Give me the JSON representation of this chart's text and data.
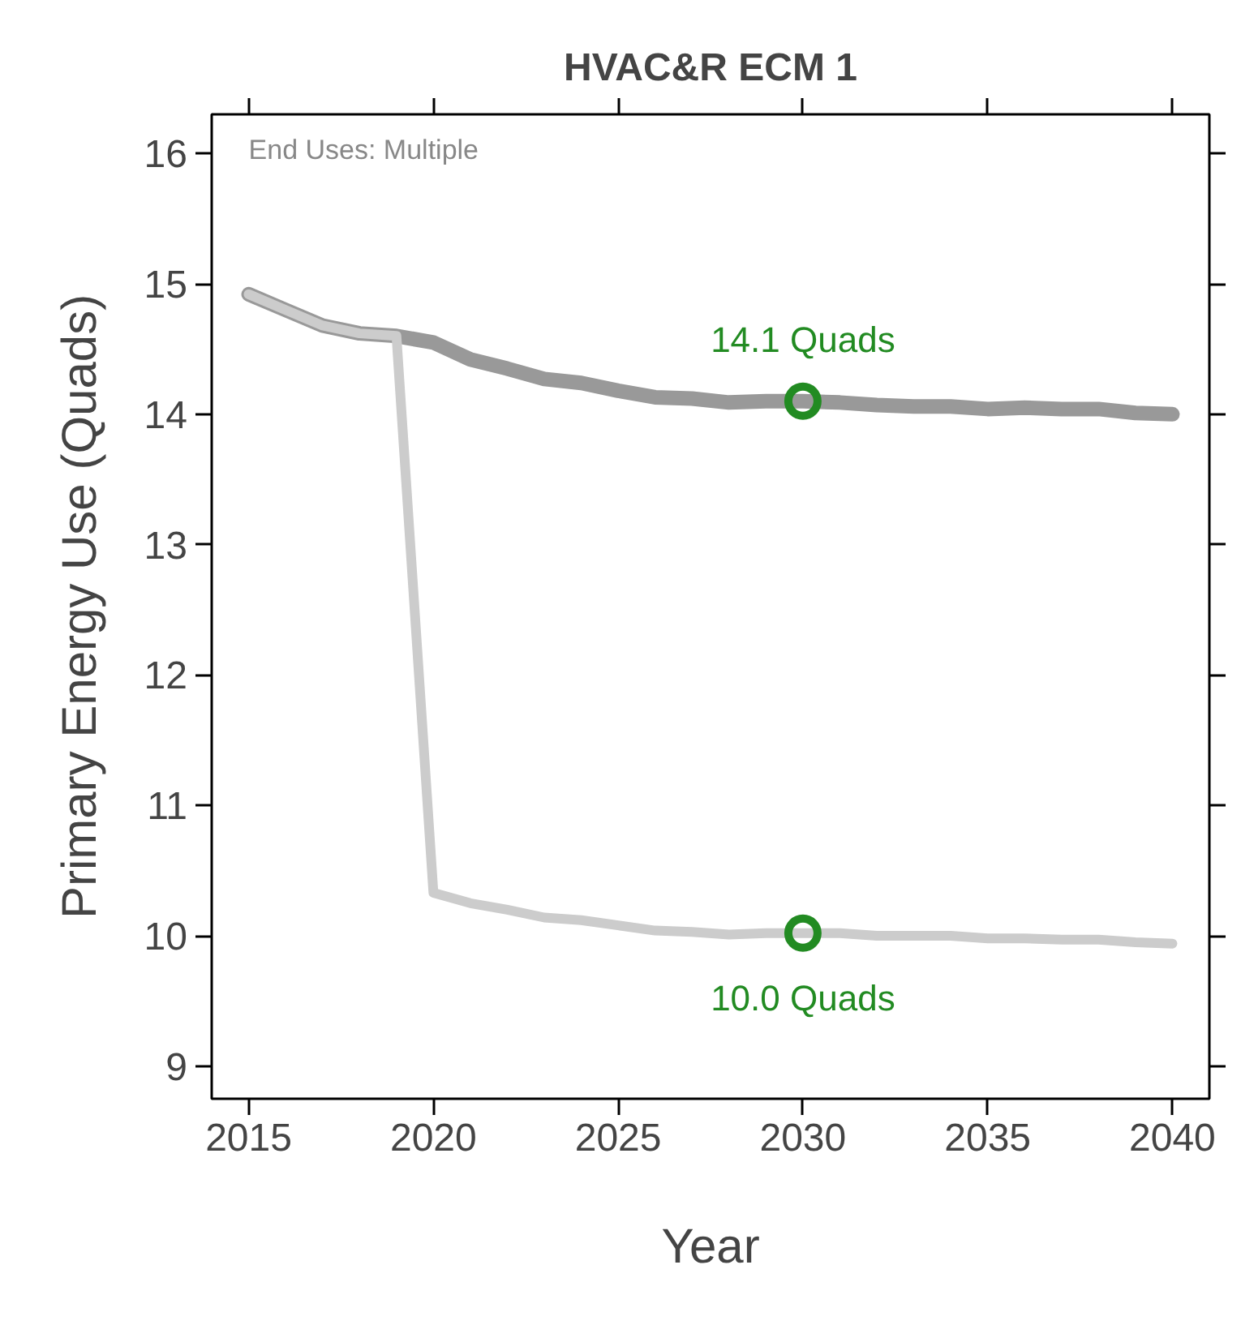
{
  "chart_data": {
    "type": "line",
    "title": "HVAC&R ECM 1",
    "xlabel": "Year",
    "ylabel": "Primary Energy Use (Quads)",
    "x": [
      2015,
      2016,
      2017,
      2018,
      2019,
      2020,
      2021,
      2022,
      2023,
      2024,
      2025,
      2026,
      2027,
      2028,
      2029,
      2030,
      2031,
      2032,
      2033,
      2034,
      2035,
      2036,
      2037,
      2038,
      2039,
      2040
    ],
    "series": [
      {
        "color": "#999999",
        "values": [
          14.92,
          14.8,
          14.68,
          14.62,
          14.6,
          14.55,
          14.42,
          14.35,
          14.27,
          14.24,
          14.18,
          14.13,
          14.12,
          14.09,
          14.1,
          14.1,
          14.09,
          14.07,
          14.06,
          14.06,
          14.04,
          14.05,
          14.04,
          14.04,
          14.01,
          14.0
        ]
      },
      {
        "color": "#cccccc",
        "values": [
          14.92,
          14.8,
          14.68,
          14.62,
          14.6,
          10.33,
          10.25,
          10.2,
          10.14,
          10.12,
          10.08,
          10.04,
          10.03,
          10.01,
          10.02,
          10.02,
          10.02,
          10.0,
          10.0,
          10.0,
          9.98,
          9.98,
          9.97,
          9.97,
          9.95,
          9.94
        ]
      },
      {
        "type": "scatter",
        "color": "#228b22",
        "marker": "circle",
        "x": [
          2030,
          2030
        ],
        "values": [
          14.1,
          10.02
        ]
      }
    ],
    "annotations": [
      "End Uses: Multiple",
      {
        "text": "14.1 Quads",
        "x": 2030,
        "y": 14.1
      },
      {
        "text": "10.0 Quads",
        "x": 2030,
        "y": 10.02
      }
    ],
    "xlim": [
      2014,
      2041
    ],
    "ylim": [
      8.75,
      16.3
    ],
    "xticks": [
      2015,
      2020,
      2025,
      2030,
      2035,
      2040
    ],
    "yticks": [
      9,
      10,
      11,
      12,
      13,
      14,
      15,
      16
    ],
    "grid": false,
    "line_style": "solid"
  }
}
